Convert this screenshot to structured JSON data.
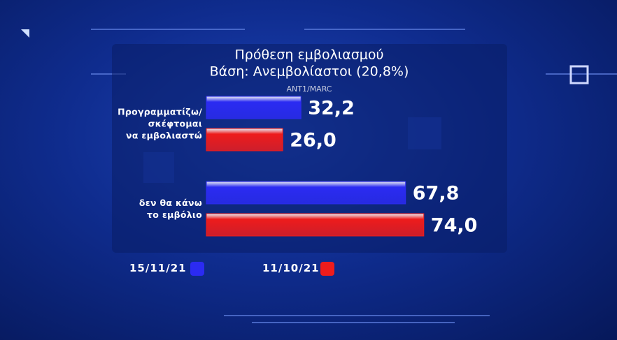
{
  "chart_data": {
    "type": "hbar",
    "title": "Πρόθεση εμβολιασμού",
    "subtitle": "Βάση: Ανεμβολίαστοι (20,8%)",
    "source": "ANT1/MARC",
    "categories": [
      "Προγραμματίζω/\nσκέφτομαι\nνα εμβολιαστώ",
      "δεν θα κάνω\nτο εμβόλιο"
    ],
    "series": [
      {
        "name": "15/11/21",
        "color": "#2b2bf2",
        "values": [
          32.2,
          67.8
        ],
        "value_labels": [
          "32,2",
          "67,8"
        ]
      },
      {
        "name": "11/10/21",
        "color": "#ee1c1c",
        "values": [
          26.0,
          74.0
        ],
        "value_labels": [
          "26,0",
          "74,0"
        ]
      }
    ]
  }
}
